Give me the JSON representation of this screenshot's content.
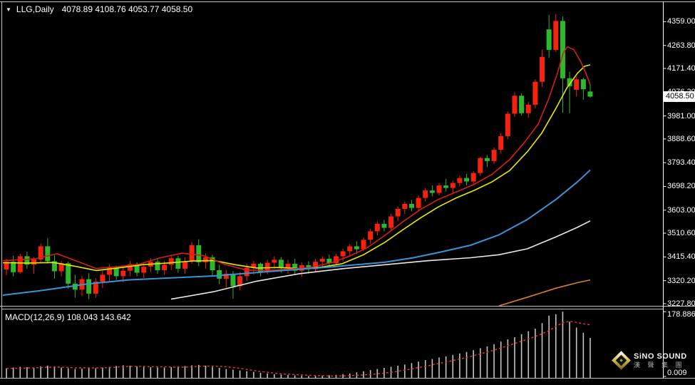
{
  "window": {
    "dropdown_icon": "symbol-dropdown",
    "symbol_period": "LLG,Daily",
    "ohlc": "4078.89 4108.76 4053.77 4058.50"
  },
  "indicator": {
    "label": "MACD(12,26,9) 108.043 143.642"
  },
  "price_axis": {
    "ticks": [
      "4359.00",
      "4263.80",
      "4171.40",
      "4076.20",
      "3981.00",
      "3888.60",
      "3793.40",
      "3698.20",
      "3603.00",
      "3510.60",
      "3415.40",
      "3320.20",
      "3227.80"
    ],
    "current_label": "4058.50",
    "current_value": 4058.5
  },
  "macd_axis": {
    "top_label": "178.886",
    "top_value": 178.886,
    "bottom_label": "0.009",
    "bottom_value": 0.009
  },
  "logo": {
    "brand": "SiNO SOUND",
    "company_cn": "漢 聲 集 團"
  },
  "colors": {
    "background": "#000000",
    "bull": "#f5220e",
    "bear": "#2eb82e",
    "axis_text": "#ffffff",
    "axis_line": "#ffffff",
    "frame": "#c0c0c0",
    "price_box_bg": "#ffffff"
  },
  "chart_data": {
    "type": "candlestick",
    "title": "LLG,Daily",
    "legend_position": "top-left",
    "grid": false,
    "price_ylim": [
      3219,
      4406
    ],
    "ohlc_current": {
      "open": 4078.89,
      "high": 4108.76,
      "low": 4053.77,
      "close": 4058.5
    },
    "candles": [
      [
        3365,
        3408,
        3342,
        3396
      ],
      [
        3396,
        3420,
        3338,
        3354
      ],
      [
        3354,
        3428,
        3348,
        3418
      ],
      [
        3418,
        3436,
        3368,
        3384
      ],
      [
        3384,
        3415,
        3348,
        3405
      ],
      [
        3405,
        3468,
        3394,
        3458
      ],
      [
        3458,
        3490,
        3388,
        3398
      ],
      [
        3398,
        3422,
        3328,
        3358
      ],
      [
        3358,
        3400,
        3338,
        3390
      ],
      [
        3390,
        3396,
        3288,
        3308
      ],
      [
        3308,
        3344,
        3252,
        3284
      ],
      [
        3284,
        3340,
        3258,
        3326
      ],
      [
        3326,
        3350,
        3246,
        3268
      ],
      [
        3268,
        3330,
        3252,
        3316
      ],
      [
        3316,
        3360,
        3290,
        3344
      ],
      [
        3344,
        3386,
        3318,
        3372
      ],
      [
        3372,
        3380,
        3324,
        3338
      ],
      [
        3338,
        3374,
        3314,
        3360
      ],
      [
        3360,
        3400,
        3338,
        3386
      ],
      [
        3386,
        3394,
        3338,
        3352
      ],
      [
        3352,
        3390,
        3330,
        3376
      ],
      [
        3376,
        3410,
        3354,
        3396
      ],
      [
        3396,
        3406,
        3348,
        3362
      ],
      [
        3362,
        3398,
        3344,
        3384
      ],
      [
        3384,
        3424,
        3362,
        3410
      ],
      [
        3410,
        3420,
        3352,
        3368
      ],
      [
        3368,
        3414,
        3348,
        3398
      ],
      [
        3398,
        3476,
        3388,
        3462
      ],
      [
        3462,
        3486,
        3378,
        3394
      ],
      [
        3394,
        3430,
        3368,
        3414
      ],
      [
        3414,
        3424,
        3342,
        3362
      ],
      [
        3362,
        3384,
        3306,
        3328
      ],
      [
        3328,
        3364,
        3292,
        3348
      ],
      [
        3348,
        3358,
        3248,
        3298
      ],
      [
        3298,
        3354,
        3282,
        3338
      ],
      [
        3338,
        3388,
        3318,
        3372
      ],
      [
        3372,
        3400,
        3344,
        3388
      ],
      [
        3388,
        3394,
        3338,
        3356
      ],
      [
        3356,
        3404,
        3346,
        3392
      ],
      [
        3392,
        3418,
        3368,
        3404
      ],
      [
        3404,
        3414,
        3352,
        3372
      ],
      [
        3372,
        3404,
        3348,
        3388
      ],
      [
        3388,
        3408,
        3342,
        3360
      ],
      [
        3360,
        3394,
        3336,
        3382
      ],
      [
        3382,
        3398,
        3348,
        3366
      ],
      [
        3366,
        3408,
        3352,
        3396
      ],
      [
        3396,
        3418,
        3376,
        3408
      ],
      [
        3408,
        3424,
        3372,
        3390
      ],
      [
        3390,
        3428,
        3382,
        3418
      ],
      [
        3418,
        3448,
        3398,
        3438
      ],
      [
        3438,
        3468,
        3416,
        3458
      ],
      [
        3458,
        3478,
        3428,
        3446
      ],
      [
        3446,
        3494,
        3438,
        3484
      ],
      [
        3484,
        3528,
        3468,
        3518
      ],
      [
        3518,
        3558,
        3502,
        3548
      ],
      [
        3548,
        3564,
        3518,
        3532
      ],
      [
        3532,
        3588,
        3522,
        3578
      ],
      [
        3578,
        3618,
        3558,
        3608
      ],
      [
        3608,
        3638,
        3588,
        3628
      ],
      [
        3628,
        3644,
        3598,
        3612
      ],
      [
        3612,
        3662,
        3602,
        3652
      ],
      [
        3652,
        3692,
        3638,
        3682
      ],
      [
        3682,
        3702,
        3658,
        3672
      ],
      [
        3672,
        3712,
        3662,
        3702
      ],
      [
        3702,
        3728,
        3678,
        3692
      ],
      [
        3692,
        3722,
        3668,
        3712
      ],
      [
        3712,
        3742,
        3698,
        3732
      ],
      [
        3732,
        3748,
        3702,
        3718
      ],
      [
        3718,
        3760,
        3708,
        3752
      ],
      [
        3752,
        3818,
        3740,
        3812
      ],
      [
        3812,
        3824,
        3776,
        3800
      ],
      [
        3800,
        3855,
        3788,
        3845
      ],
      [
        3845,
        3912,
        3832,
        3900
      ],
      [
        3900,
        3998,
        3888,
        3990
      ],
      [
        3990,
        4076,
        3978,
        4062
      ],
      [
        4062,
        4072,
        3982,
        3992
      ],
      [
        3992,
        4038,
        3974,
        4026
      ],
      [
        4026,
        4128,
        4012,
        4118
      ],
      [
        4118,
        4248,
        4098,
        4218
      ],
      [
        4328,
        4386,
        4214,
        4246
      ],
      [
        4246,
        4390,
        4238,
        4362
      ],
      [
        4362,
        4380,
        3994,
        4132
      ],
      [
        4132,
        4158,
        3992,
        4100
      ],
      [
        4086,
        4140,
        4058,
        4128
      ],
      [
        4128,
        4134,
        4046,
        4088
      ],
      [
        4078.89,
        4108.76,
        4053.77,
        4058.5
      ]
    ],
    "moving_averages": [
      {
        "name": "ma-yellow-fast",
        "color": "#e8e800",
        "points": [
          [
            4,
            3392
          ],
          [
            40,
            3391
          ],
          [
            75,
            3393
          ],
          [
            105,
            3378
          ],
          [
            135,
            3361
          ],
          [
            165,
            3371
          ],
          [
            200,
            3384
          ],
          [
            235,
            3391
          ],
          [
            270,
            3399
          ],
          [
            300,
            3401
          ],
          [
            330,
            3384
          ],
          [
            360,
            3371
          ],
          [
            390,
            3373
          ],
          [
            420,
            3369
          ],
          [
            450,
            3374
          ],
          [
            480,
            3388
          ],
          [
            510,
            3424
          ],
          [
            540,
            3474
          ],
          [
            565,
            3524
          ],
          [
            590,
            3572
          ],
          [
            615,
            3616
          ],
          [
            640,
            3652
          ],
          [
            665,
            3682
          ],
          [
            690,
            3716
          ],
          [
            715,
            3762
          ],
          [
            740,
            3838
          ],
          [
            760,
            3912
          ],
          [
            780,
            4012
          ],
          [
            795,
            4092
          ],
          [
            810,
            4152
          ],
          [
            820,
            4180
          ],
          [
            828,
            4186
          ]
        ]
      },
      {
        "name": "ma-red-fast",
        "color": "#d2201a",
        "points": [
          [
            4,
            3400
          ],
          [
            50,
            3408
          ],
          [
            80,
            3428
          ],
          [
            110,
            3396
          ],
          [
            135,
            3369
          ],
          [
            165,
            3376
          ],
          [
            195,
            3386
          ],
          [
            225,
            3412
          ],
          [
            255,
            3430
          ],
          [
            285,
            3421
          ],
          [
            315,
            3386
          ],
          [
            345,
            3363
          ],
          [
            375,
            3361
          ],
          [
            405,
            3366
          ],
          [
            435,
            3373
          ],
          [
            465,
            3392
          ],
          [
            490,
            3418
          ],
          [
            515,
            3452
          ],
          [
            540,
            3502
          ],
          [
            565,
            3556
          ],
          [
            590,
            3606
          ],
          [
            615,
            3646
          ],
          [
            640,
            3676
          ],
          [
            665,
            3706
          ],
          [
            690,
            3746
          ],
          [
            715,
            3806
          ],
          [
            735,
            3872
          ],
          [
            755,
            3948
          ],
          [
            770,
            4052
          ],
          [
            782,
            4152
          ],
          [
            790,
            4232
          ],
          [
            796,
            4258
          ],
          [
            805,
            4247
          ],
          [
            815,
            4197
          ],
          [
            822,
            4152
          ],
          [
            828,
            4107
          ]
        ]
      },
      {
        "name": "ma-blue-mid",
        "color": "#3a93d5",
        "points": [
          [
            4,
            3262
          ],
          [
            60,
            3281
          ],
          [
            120,
            3306
          ],
          [
            180,
            3323
          ],
          [
            240,
            3331
          ],
          [
            300,
            3339
          ],
          [
            360,
            3353
          ],
          [
            420,
            3366
          ],
          [
            460,
            3374
          ],
          [
            500,
            3384
          ],
          [
            540,
            3394
          ],
          [
            580,
            3412
          ],
          [
            620,
            3436
          ],
          [
            660,
            3462
          ],
          [
            700,
            3504
          ],
          [
            740,
            3566
          ],
          [
            780,
            3646
          ],
          [
            810,
            3716
          ],
          [
            828,
            3764
          ]
        ]
      },
      {
        "name": "ma-white-slow",
        "color": "#e8e8e8",
        "points": [
          [
            240,
            3246
          ],
          [
            300,
            3276
          ],
          [
            360,
            3318
          ],
          [
            420,
            3348
          ],
          [
            480,
            3368
          ],
          [
            540,
            3384
          ],
          [
            600,
            3400
          ],
          [
            660,
            3412
          ],
          [
            700,
            3424
          ],
          [
            740,
            3448
          ],
          [
            780,
            3496
          ],
          [
            810,
            3534
          ],
          [
            828,
            3560
          ]
        ]
      },
      {
        "name": "ma-orange-slowest",
        "color": "#d97e2e",
        "points": [
          [
            700,
            3219
          ],
          [
            740,
            3254
          ],
          [
            780,
            3290
          ],
          [
            810,
            3312
          ],
          [
            828,
            3323
          ]
        ]
      }
    ],
    "macd": {
      "label": "MACD(12,26,9)",
      "main_value": 108.043,
      "signal_value": 143.642,
      "ylim": [
        0,
        185
      ],
      "histogram_color": "#c4c4c4",
      "signal_color": "#ee3333",
      "histogram": [
        26,
        28,
        30,
        29,
        27,
        31,
        33,
        31,
        28,
        26,
        24,
        25,
        27,
        26,
        28,
        30,
        32,
        34,
        33,
        31,
        30,
        29,
        28,
        28,
        29,
        31,
        32,
        34,
        35,
        33,
        30,
        27,
        24,
        22,
        20,
        18,
        16,
        14,
        12,
        10,
        9,
        8,
        7,
        6,
        5,
        5,
        6,
        7,
        8,
        10,
        12,
        15,
        18,
        21,
        24,
        27,
        30,
        33,
        36,
        40,
        44,
        48,
        51,
        55,
        58,
        62,
        66,
        70,
        75,
        80,
        85,
        91,
        98,
        104,
        110,
        118,
        126,
        133,
        148,
        168,
        172,
        178.886,
        152,
        136,
        122,
        108.043
      ],
      "signal": [
        25,
        26,
        26,
        27,
        27,
        28,
        29,
        29,
        29,
        28,
        27,
        27,
        27,
        27,
        27,
        28,
        29,
        30,
        31,
        31,
        31,
        30,
        30,
        30,
        29,
        29,
        29,
        30,
        31,
        32,
        32,
        31,
        30,
        28,
        26,
        23,
        20,
        17,
        15,
        13,
        11,
        10,
        9,
        8,
        7,
        6,
        6,
        5,
        5,
        5,
        6,
        7,
        8,
        9,
        11,
        13,
        15,
        18,
        21,
        24,
        28,
        31,
        35,
        39,
        43,
        47,
        51,
        55,
        60,
        65,
        70,
        75,
        81,
        87,
        93,
        99,
        105,
        112,
        119,
        128,
        139,
        149,
        153,
        150,
        146,
        143.642
      ]
    }
  }
}
